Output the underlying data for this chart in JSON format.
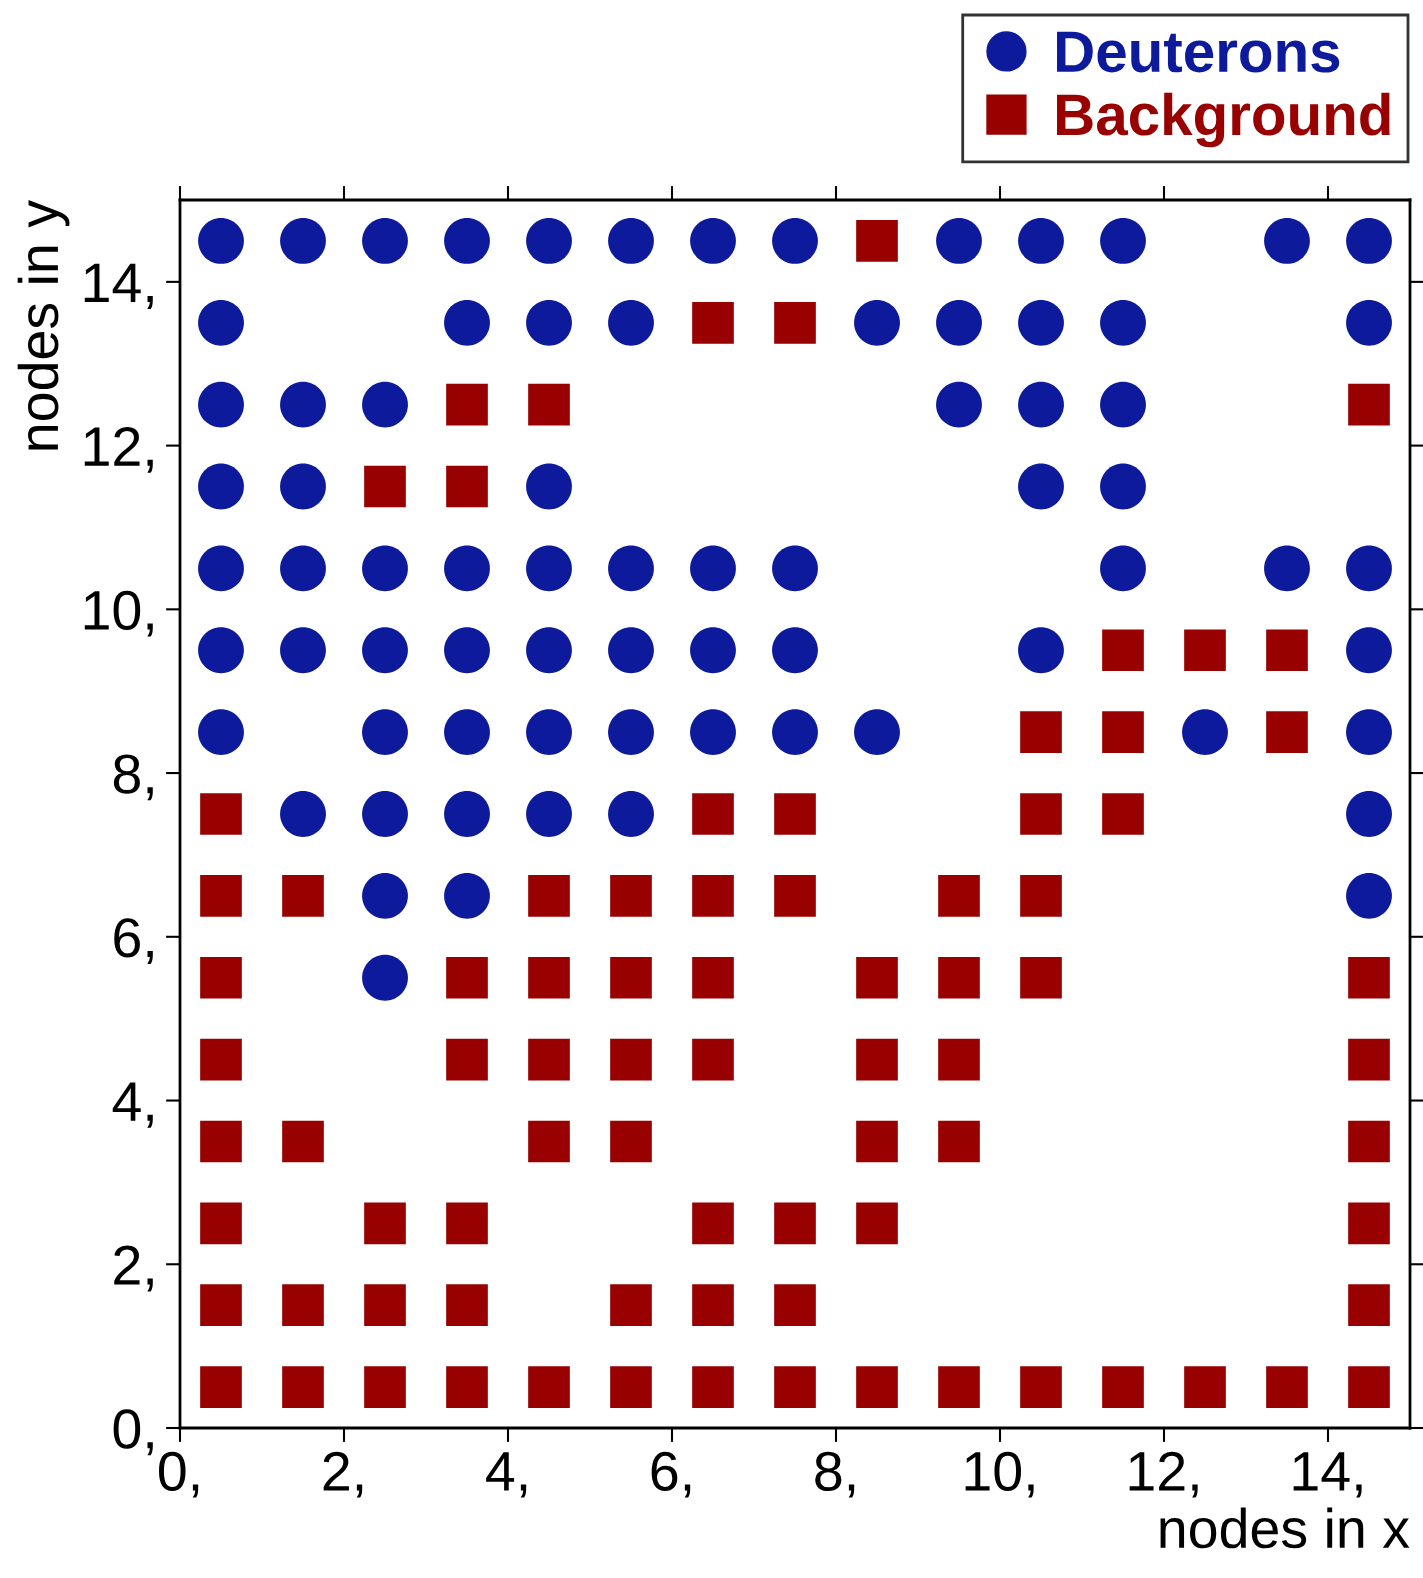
{
  "chart_data": {
    "type": "scatter",
    "xlabel": "nodes in x",
    "ylabel": "nodes in y",
    "xlim": [
      0,
      15
    ],
    "ylim": [
      0,
      15
    ],
    "xticks": [
      {
        "value": 0,
        "label": "0,"
      },
      {
        "value": 2,
        "label": "2,"
      },
      {
        "value": 4,
        "label": "4,"
      },
      {
        "value": 6,
        "label": "6,"
      },
      {
        "value": 8,
        "label": "8,"
      },
      {
        "value": 10,
        "label": "10,"
      },
      {
        "value": 12,
        "label": "12,"
      },
      {
        "value": 14,
        "label": "14,"
      }
    ],
    "yticks": [
      {
        "value": 0,
        "label": "0,"
      },
      {
        "value": 2,
        "label": "2,"
      },
      {
        "value": 4,
        "label": "4,"
      },
      {
        "value": 6,
        "label": "6,"
      },
      {
        "value": 8,
        "label": "8,"
      },
      {
        "value": 10,
        "label": "10,"
      },
      {
        "value": 12,
        "label": "12,"
      },
      {
        "value": 14,
        "label": "14,"
      }
    ],
    "grid": false,
    "legend": "top right",
    "series": [
      {
        "name": "Deuterons",
        "color": "#0d1a9c",
        "marker": "circle",
        "x": [
          0.5,
          1.5,
          2.5,
          3.5,
          4.5,
          5.5,
          6.5,
          7.5,
          9.5,
          10.5,
          11.5,
          13.5,
          14.5,
          0.5,
          3.5,
          4.5,
          5.5,
          8.5,
          9.5,
          10.5,
          11.5,
          14.5,
          0.5,
          1.5,
          2.5,
          9.5,
          10.5,
          11.5,
          0.5,
          1.5,
          4.5,
          10.5,
          11.5,
          0.5,
          1.5,
          2.5,
          3.5,
          4.5,
          5.5,
          6.5,
          7.5,
          11.5,
          13.5,
          14.5,
          0.5,
          1.5,
          2.5,
          3.5,
          4.5,
          5.5,
          6.5,
          7.5,
          10.5,
          14.5,
          0.5,
          2.5,
          3.5,
          4.5,
          5.5,
          6.5,
          7.5,
          8.5,
          12.5,
          14.5,
          1.5,
          2.5,
          3.5,
          4.5,
          5.5,
          14.5,
          2.5,
          3.5,
          14.5,
          2.5
        ],
        "values": [
          14.5,
          14.5,
          14.5,
          14.5,
          14.5,
          14.5,
          14.5,
          14.5,
          14.5,
          14.5,
          14.5,
          14.5,
          14.5,
          13.5,
          13.5,
          13.5,
          13.5,
          13.5,
          13.5,
          13.5,
          13.5,
          13.5,
          12.5,
          12.5,
          12.5,
          12.5,
          12.5,
          12.5,
          11.5,
          11.5,
          11.5,
          11.5,
          11.5,
          10.5,
          10.5,
          10.5,
          10.5,
          10.5,
          10.5,
          10.5,
          10.5,
          10.5,
          10.5,
          10.5,
          9.5,
          9.5,
          9.5,
          9.5,
          9.5,
          9.5,
          9.5,
          9.5,
          9.5,
          9.5,
          8.5,
          8.5,
          8.5,
          8.5,
          8.5,
          8.5,
          8.5,
          8.5,
          8.5,
          8.5,
          7.5,
          7.5,
          7.5,
          7.5,
          7.5,
          7.5,
          6.5,
          6.5,
          6.5,
          5.5
        ]
      },
      {
        "name": "Background",
        "color": "#990000",
        "marker": "square",
        "x": [
          8.5,
          6.5,
          7.5,
          3.5,
          4.5,
          14.5,
          2.5,
          3.5,
          11.5,
          12.5,
          13.5,
          10.5,
          11.5,
          13.5,
          0.5,
          6.5,
          7.5,
          10.5,
          11.5,
          0.5,
          1.5,
          4.5,
          5.5,
          6.5,
          7.5,
          9.5,
          10.5,
          0.5,
          3.5,
          4.5,
          5.5,
          6.5,
          8.5,
          9.5,
          10.5,
          14.5,
          0.5,
          3.5,
          4.5,
          5.5,
          6.5,
          8.5,
          9.5,
          14.5,
          0.5,
          1.5,
          4.5,
          5.5,
          8.5,
          9.5,
          14.5,
          0.5,
          2.5,
          3.5,
          6.5,
          7.5,
          8.5,
          14.5,
          0.5,
          1.5,
          2.5,
          3.5,
          5.5,
          6.5,
          7.5,
          14.5,
          0.5,
          1.5,
          2.5,
          3.5,
          4.5,
          5.5,
          6.5,
          7.5,
          8.5,
          9.5,
          10.5,
          11.5,
          12.5,
          13.5,
          14.5
        ],
        "values": [
          14.5,
          13.5,
          13.5,
          12.5,
          12.5,
          12.5,
          11.5,
          11.5,
          9.5,
          9.5,
          9.5,
          8.5,
          8.5,
          8.5,
          7.5,
          7.5,
          7.5,
          7.5,
          7.5,
          6.5,
          6.5,
          6.5,
          6.5,
          6.5,
          6.5,
          6.5,
          6.5,
          5.5,
          5.5,
          5.5,
          5.5,
          5.5,
          5.5,
          5.5,
          5.5,
          5.5,
          4.5,
          4.5,
          4.5,
          4.5,
          4.5,
          4.5,
          4.5,
          4.5,
          3.5,
          3.5,
          3.5,
          3.5,
          3.5,
          3.5,
          3.5,
          2.5,
          2.5,
          2.5,
          2.5,
          2.5,
          2.5,
          2.5,
          1.5,
          1.5,
          1.5,
          1.5,
          1.5,
          1.5,
          1.5,
          1.5,
          0.5,
          0.5,
          0.5,
          0.5,
          0.5,
          0.5,
          0.5,
          0.5,
          0.5,
          0.5,
          0.5,
          0.5,
          0.5,
          0.5,
          0.5
        ]
      }
    ]
  }
}
